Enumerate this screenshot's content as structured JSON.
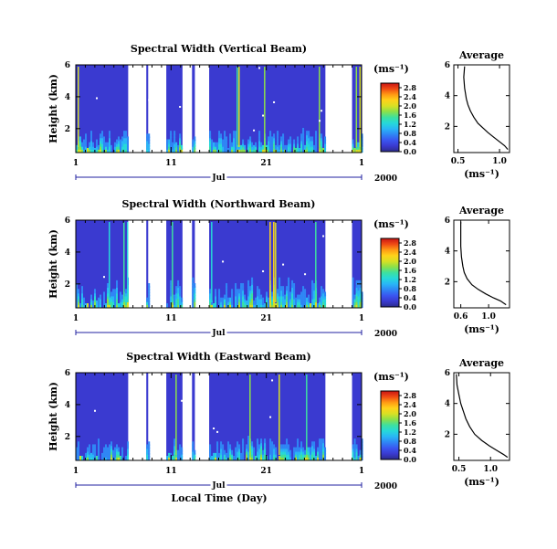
{
  "figure": {
    "year_label": "2000",
    "xlabel": "Local Time (Day)"
  },
  "chart_data": [
    {
      "type": "heatmap",
      "title": "Spectral Width (Vertical Beam)",
      "ylabel": "Height (km)",
      "ylim": [
        0.5,
        6.0
      ],
      "y_ticks": [
        "2",
        "4",
        "6"
      ],
      "x_ticks": [
        "1",
        "11",
        "21",
        "1"
      ],
      "month": "Jul",
      "data_segments_day": [
        [
          1,
          6.5
        ],
        [
          8.4,
          8.6
        ],
        [
          10.5,
          12.2
        ],
        [
          13.2,
          13.5
        ],
        [
          15.0,
          27.2
        ],
        [
          30.0,
          31.0
        ]
      ],
      "colorbar": {
        "unit": "(ms⁻¹)",
        "ticks": [
          "0.0",
          "0.4",
          "0.8",
          "1.2",
          "1.6",
          "2.0",
          "2.4",
          "2.8"
        ],
        "range": [
          0.0,
          3.0
        ]
      },
      "average": {
        "title": "Average",
        "xlabel": "(ms⁻¹)",
        "x_ticks": [
          "0.5",
          "1.0"
        ],
        "y_ticks": [
          "2",
          "4",
          "6"
        ],
        "xlim": [
          0.45,
          1.12
        ],
        "ylim": [
          0.3,
          6.0
        ],
        "profile": [
          [
            0.58,
            5.9
          ],
          [
            0.57,
            5.2
          ],
          [
            0.58,
            4.5
          ],
          [
            0.6,
            3.8
          ],
          [
            0.62,
            3.4
          ],
          [
            0.65,
            3.0
          ],
          [
            0.69,
            2.6
          ],
          [
            0.74,
            2.2
          ],
          [
            0.8,
            1.9
          ],
          [
            0.86,
            1.6
          ],
          [
            0.93,
            1.3
          ],
          [
            1.0,
            1.0
          ],
          [
            1.06,
            0.75
          ],
          [
            1.1,
            0.5
          ]
        ]
      }
    },
    {
      "type": "heatmap",
      "title": "Spectral Width (Northward Beam)",
      "ylabel": "Height (km)",
      "ylim": [
        0.5,
        6.0
      ],
      "y_ticks": [
        "2",
        "4",
        "6"
      ],
      "x_ticks": [
        "1",
        "11",
        "21",
        "1"
      ],
      "month": "Jul",
      "data_segments_day": [
        [
          1,
          6.5
        ],
        [
          8.4,
          8.6
        ],
        [
          10.5,
          12.2
        ],
        [
          13.2,
          13.5
        ],
        [
          15.0,
          27.2
        ],
        [
          30.0,
          31.0
        ]
      ],
      "colorbar": {
        "unit": "(ms⁻¹)",
        "ticks": [
          "0.0",
          "0.4",
          "0.8",
          "1.2",
          "1.6",
          "2.0",
          "2.4",
          "2.8"
        ],
        "range": [
          0.0,
          3.0
        ]
      },
      "average": {
        "title": "Average",
        "xlabel": "(ms⁻¹)",
        "x_ticks": [
          "0.6",
          "1.0"
        ],
        "y_ticks": [
          "2",
          "4",
          "6"
        ],
        "xlim": [
          0.5,
          1.3
        ],
        "ylim": [
          0.3,
          6.0
        ],
        "profile": [
          [
            0.6,
            5.9
          ],
          [
            0.6,
            5.0
          ],
          [
            0.6,
            4.3
          ],
          [
            0.61,
            3.6
          ],
          [
            0.63,
            3.0
          ],
          [
            0.65,
            2.6
          ],
          [
            0.69,
            2.2
          ],
          [
            0.76,
            1.8
          ],
          [
            0.85,
            1.5
          ],
          [
            0.96,
            1.2
          ],
          [
            1.07,
            0.95
          ],
          [
            1.17,
            0.75
          ],
          [
            1.25,
            0.5
          ]
        ]
      }
    },
    {
      "type": "heatmap",
      "title": "Spectral Width (Eastward Beam)",
      "ylabel": "Height (km)",
      "ylim": [
        0.5,
        6.0
      ],
      "y_ticks": [
        "2",
        "4",
        "6"
      ],
      "x_ticks": [
        "1",
        "11",
        "21",
        "1"
      ],
      "month": "Jul",
      "data_segments_day": [
        [
          1,
          6.5
        ],
        [
          8.4,
          8.6
        ],
        [
          10.5,
          12.2
        ],
        [
          13.2,
          13.5
        ],
        [
          15.0,
          27.2
        ],
        [
          30.0,
          31.0
        ]
      ],
      "colorbar": {
        "unit": "(ms⁻¹)",
        "ticks": [
          "0.0",
          "0.4",
          "0.8",
          "1.2",
          "1.6",
          "2.0",
          "2.4",
          "2.8"
        ],
        "range": [
          0.0,
          3.0
        ]
      },
      "average": {
        "title": "Average",
        "xlabel": "(ms⁻¹)",
        "x_ticks": [
          "0.5",
          "1.0"
        ],
        "y_ticks": [
          "2",
          "4",
          "6"
        ],
        "xlim": [
          0.42,
          1.3
        ],
        "ylim": [
          0.3,
          6.0
        ],
        "profile": [
          [
            0.46,
            5.9
          ],
          [
            0.47,
            5.2
          ],
          [
            0.5,
            4.6
          ],
          [
            0.53,
            4.0
          ],
          [
            0.57,
            3.5
          ],
          [
            0.61,
            3.0
          ],
          [
            0.67,
            2.5
          ],
          [
            0.75,
            2.0
          ],
          [
            0.86,
            1.6
          ],
          [
            0.98,
            1.25
          ],
          [
            1.1,
            0.95
          ],
          [
            1.2,
            0.7
          ],
          [
            1.27,
            0.5
          ]
        ]
      }
    }
  ],
  "colors": {
    "scale": [
      "#2b2b8c",
      "#3a3ad0",
      "#3a56f0",
      "#2f86f5",
      "#29b6f6",
      "#26d9d9",
      "#3de0a0",
      "#8be04a",
      "#d8e024",
      "#ffd21a",
      "#ff9a14",
      "#f04a14",
      "#c81414"
    ],
    "background": "#3a3ad0"
  }
}
